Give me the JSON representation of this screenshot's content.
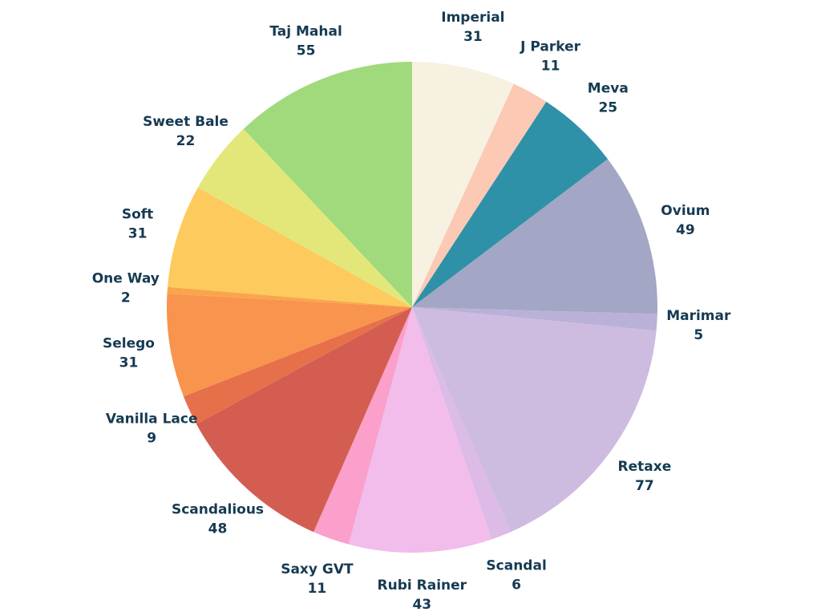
{
  "chart_data": {
    "type": "pie",
    "start_angle_deg": 0,
    "direction": "clockwise",
    "label_color": "#163a52",
    "slices": [
      {
        "label": "Imperial",
        "value": 31,
        "color": "#f7f1e1"
      },
      {
        "label": "J Parker",
        "value": 11,
        "color": "#fcc9b5"
      },
      {
        "label": "Meva",
        "value": 25,
        "color": "#2f91a8"
      },
      {
        "label": "Ovium",
        "value": 49,
        "color": "#a3a6c4"
      },
      {
        "label": "Marimar",
        "value": 5,
        "color": "#b9b1d8"
      },
      {
        "label": "Retaxe",
        "value": 77,
        "color": "#cdbbe0"
      },
      {
        "label": "Scandal",
        "value": 6,
        "color": "#dcbbe6"
      },
      {
        "label": "Rubi Rainer",
        "value": 43,
        "color": "#f2bceb"
      },
      {
        "label": "Saxy GVT",
        "value": 11,
        "color": "#fb9fcb"
      },
      {
        "label": "Scandalious",
        "value": 48,
        "color": "#d45d51"
      },
      {
        "label": "Vanilla Lace",
        "value": 9,
        "color": "#e5704a"
      },
      {
        "label": "Selego",
        "value": 31,
        "color": "#f8944d"
      },
      {
        "label": "One Way",
        "value": 2,
        "color": "#fba54a"
      },
      {
        "label": "Soft",
        "value": 31,
        "color": "#fdca5d"
      },
      {
        "label": "Sweet Bale",
        "value": 22,
        "color": "#e3e77a"
      },
      {
        "label": "Taj Mahal",
        "value": 55,
        "color": "#a0da7c"
      }
    ]
  }
}
